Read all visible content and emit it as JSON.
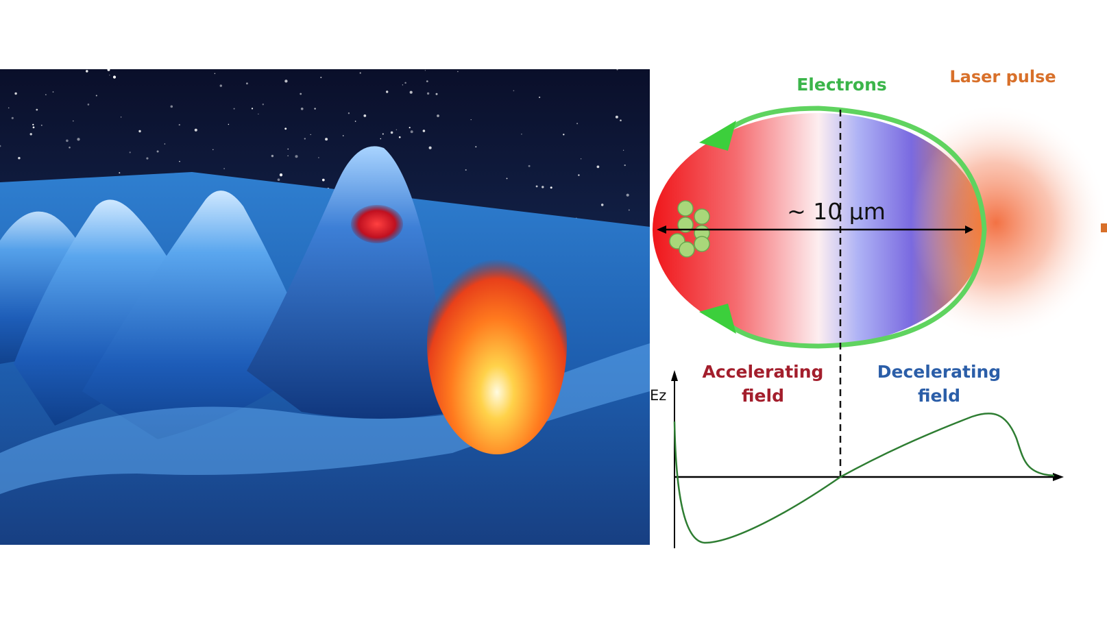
{
  "labels": {
    "electrons": "Electrons",
    "laser_pulse": "Laser pulse",
    "size": "~ 10 µm",
    "accel_line1": "Accelerating",
    "accel_line2": "field",
    "decel_line1": "Decelerating",
    "decel_line2": "field",
    "ez_axis": "Ez"
  },
  "colors": {
    "electrons": "#3bb54a",
    "laser_pulse": "#d8702a",
    "accelerating": "#a31e2c",
    "decelerating": "#2b5ea8",
    "field_curve": "#2e7d32",
    "bubble_outline": "#5fd35f"
  }
}
